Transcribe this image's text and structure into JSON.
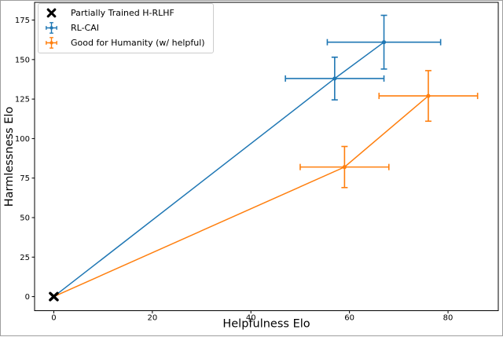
{
  "figure": {
    "background": "#ffffff",
    "border_color": "#9e9e9e"
  },
  "chart_data": {
    "type": "line",
    "title": "",
    "xlabel": "Helpfulness Elo",
    "ylabel": "Harmlessness Elo",
    "xlim": [
      -3.9,
      90.2
    ],
    "ylim": [
      -8.9,
      186.2
    ],
    "xticks": [
      0,
      20,
      40,
      60,
      80
    ],
    "yticks": [
      0,
      25,
      50,
      75,
      100,
      125,
      150,
      175
    ],
    "grid": false,
    "legend_position": "upper left",
    "legend_border_color": "#cccccc",
    "axis_color": "#000000",
    "series": [
      {
        "name": "Partially Trained H-RLHF",
        "color": "#000000",
        "marker": "X",
        "line": false,
        "points": [
          {
            "x": 0,
            "y": 0
          }
        ]
      },
      {
        "name": "RL-CAI",
        "color": "#1f77b4",
        "marker": "o",
        "line": true,
        "points": [
          {
            "x": 0,
            "y": 0,
            "marker": false
          },
          {
            "x": 57,
            "y": 138,
            "xerr": 10,
            "yerr": 13.5
          },
          {
            "x": 67,
            "y": 161,
            "xerr": 11.5,
            "yerr": 17
          }
        ]
      },
      {
        "name": "Good for Humanity (w/ helpful)",
        "color": "#ff7f0e",
        "marker": "o",
        "line": true,
        "points": [
          {
            "x": 0,
            "y": 0,
            "marker": false
          },
          {
            "x": 59,
            "y": 82,
            "xerr": 9,
            "yerr": 13
          },
          {
            "x": 76,
            "y": 127,
            "xerr": 10,
            "yerr": 16
          }
        ]
      }
    ]
  }
}
